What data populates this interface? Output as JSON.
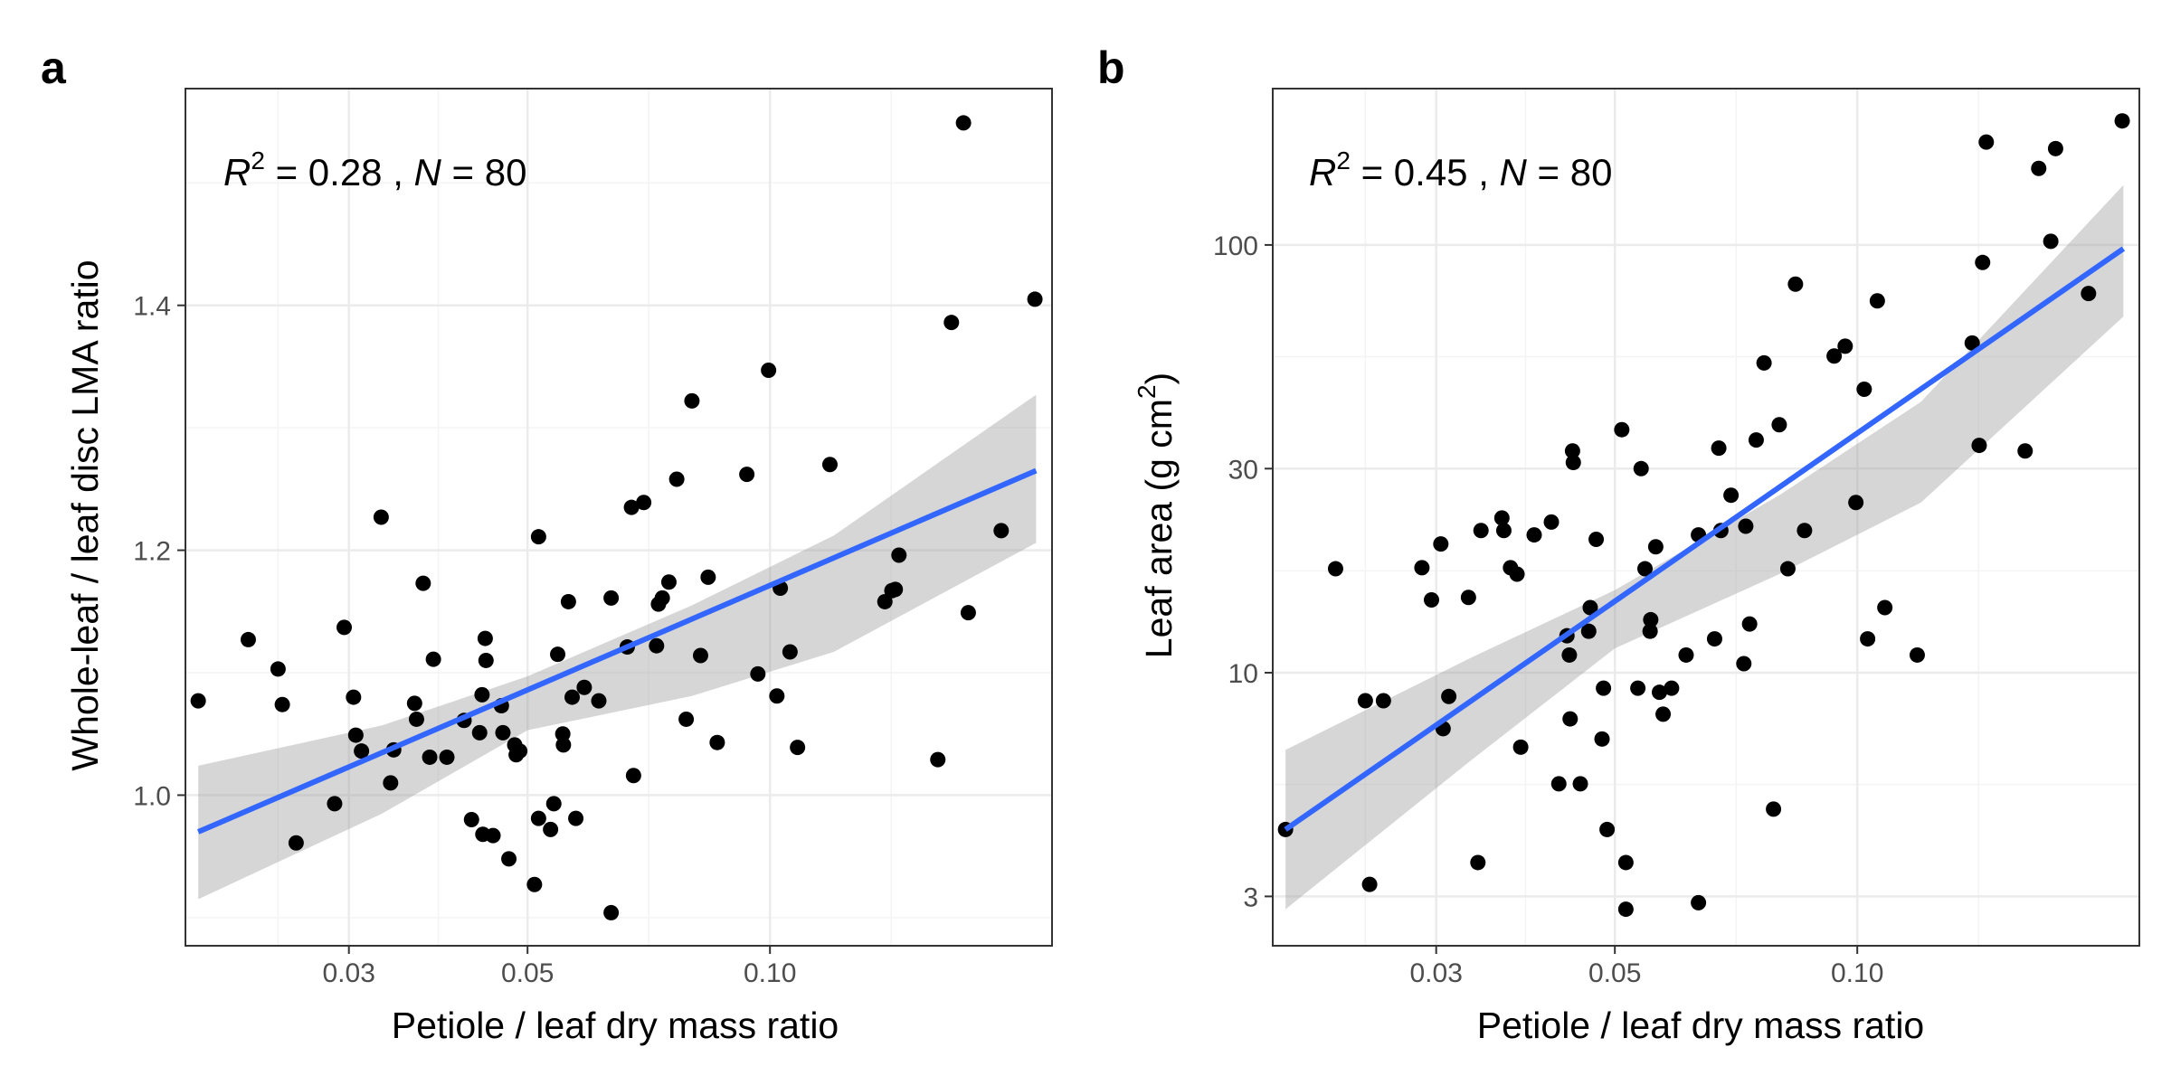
{
  "chart_data": [
    {
      "type": "scatter",
      "panel_label": "a",
      "annotation": {
        "r2_label": "R",
        "r2_sup": "2",
        "r2_value": " = 0.28 , ",
        "n_label": "N",
        "n_value": " = 80"
      },
      "xlabel": "Petiole / leaf dry mass ratio",
      "ylabel": "Whole-leaf / leaf disc LMA ratio",
      "x_scale": "log",
      "y_scale": "linear",
      "xlim": [
        0.0188,
        0.224
      ],
      "ylim": [
        0.877,
        1.577
      ],
      "x_ticks": [
        {
          "value": 0.03,
          "label": "0.03"
        },
        {
          "value": 0.05,
          "label": "0.05"
        },
        {
          "value": 0.1,
          "label": "0.10"
        }
      ],
      "y_ticks": [
        {
          "value": 1.0,
          "label": "1.0"
        },
        {
          "value": 1.2,
          "label": "1.2"
        },
        {
          "value": 1.4,
          "label": "1.4"
        }
      ],
      "y_minor": [
        0.9,
        1.1,
        1.3,
        1.5
      ],
      "grid": true,
      "fit_line": {
        "x": [
          0.0195,
          0.214
        ],
        "y": [
          0.97,
          1.265
        ]
      },
      "confidence_band": {
        "x": [
          0.0195,
          0.033,
          0.05,
          0.08,
          0.12,
          0.214
        ],
        "upper": [
          1.024,
          1.057,
          1.097,
          1.155,
          1.212,
          1.327
        ],
        "lower": [
          0.915,
          0.985,
          1.053,
          1.081,
          1.117,
          1.206
        ]
      },
      "points": [
        [
          0.0195,
          1.077
        ],
        [
          0.0225,
          1.127
        ],
        [
          0.0245,
          1.103
        ],
        [
          0.0248,
          1.074
        ],
        [
          0.0258,
          0.961
        ],
        [
          0.0288,
          0.993
        ],
        [
          0.0296,
          1.137
        ],
        [
          0.0304,
          1.08
        ],
        [
          0.0306,
          1.049
        ],
        [
          0.0311,
          1.036
        ],
        [
          0.0329,
          1.227
        ],
        [
          0.0338,
          1.01
        ],
        [
          0.0341,
          1.037
        ],
        [
          0.0362,
          1.075
        ],
        [
          0.0364,
          1.062
        ],
        [
          0.0371,
          1.173
        ],
        [
          0.0378,
          1.031
        ],
        [
          0.0382,
          1.111
        ],
        [
          0.0397,
          1.031
        ],
        [
          0.0417,
          1.061
        ],
        [
          0.0426,
          0.98
        ],
        [
          0.0436,
          1.051
        ],
        [
          0.0439,
          1.082
        ],
        [
          0.044,
          0.968
        ],
        [
          0.0443,
          1.128
        ],
        [
          0.0444,
          1.11
        ],
        [
          0.0453,
          0.967
        ],
        [
          0.0464,
          1.073
        ],
        [
          0.0466,
          1.051
        ],
        [
          0.0474,
          0.948
        ],
        [
          0.0482,
          1.041
        ],
        [
          0.0484,
          1.033
        ],
        [
          0.0489,
          1.036
        ],
        [
          0.051,
          0.927
        ],
        [
          0.0516,
          0.981
        ],
        [
          0.0516,
          1.211
        ],
        [
          0.0534,
          0.972
        ],
        [
          0.0539,
          0.993
        ],
        [
          0.0545,
          1.115
        ],
        [
          0.0553,
          1.05
        ],
        [
          0.0554,
          1.041
        ],
        [
          0.0562,
          1.158
        ],
        [
          0.0568,
          1.08
        ],
        [
          0.0574,
          0.981
        ],
        [
          0.0588,
          1.088
        ],
        [
          0.0613,
          1.077
        ],
        [
          0.0635,
          1.161
        ],
        [
          0.0635,
          0.904
        ],
        [
          0.0665,
          1.121
        ],
        [
          0.0673,
          1.235
        ],
        [
          0.0677,
          1.016
        ],
        [
          0.0697,
          1.239
        ],
        [
          0.0723,
          1.122
        ],
        [
          0.0727,
          1.156
        ],
        [
          0.0735,
          1.161
        ],
        [
          0.0749,
          1.174
        ],
        [
          0.0766,
          1.258
        ],
        [
          0.0787,
          1.062
        ],
        [
          0.08,
          1.322
        ],
        [
          0.082,
          1.114
        ],
        [
          0.0838,
          1.178
        ],
        [
          0.086,
          1.043
        ],
        [
          0.0936,
          1.262
        ],
        [
          0.0966,
          1.099
        ],
        [
          0.0996,
          1.347
        ],
        [
          0.102,
          1.081
        ],
        [
          0.103,
          1.169
        ],
        [
          0.1059,
          1.117
        ],
        [
          0.1082,
          1.039
        ],
        [
          0.1187,
          1.27
        ],
        [
          0.1389,
          1.158
        ],
        [
          0.1417,
          1.167
        ],
        [
          0.1431,
          1.168
        ],
        [
          0.1446,
          1.196
        ],
        [
          0.1616,
          1.029
        ],
        [
          0.168,
          1.386
        ],
        [
          0.1739,
          1.549
        ],
        [
          0.1763,
          1.149
        ],
        [
          0.1937,
          1.216
        ],
        [
          0.2133,
          1.405
        ]
      ]
    },
    {
      "type": "scatter",
      "panel_label": "b",
      "annotation": {
        "r2_label": "R",
        "r2_sup": "2",
        "r2_value": " = 0.45 , ",
        "n_label": "N",
        "n_value": " = 80"
      },
      "xlabel": "Petiole / leaf dry mass ratio",
      "ylabel_main": "Leaf area (g cm",
      "ylabel_sup": "2",
      "ylabel_close": ")",
      "x_scale": "log",
      "y_scale": "log",
      "xlim": [
        0.0188,
        0.224
      ],
      "ylim": [
        2.3,
        232
      ],
      "x_ticks": [
        {
          "value": 0.03,
          "label": "0.03"
        },
        {
          "value": 0.05,
          "label": "0.05"
        },
        {
          "value": 0.1,
          "label": "0.10"
        }
      ],
      "y_ticks": [
        {
          "value": 3,
          "label": "3"
        },
        {
          "value": 10,
          "label": "10"
        },
        {
          "value": 30,
          "label": "30"
        },
        {
          "value": 100,
          "label": "100"
        }
      ],
      "y_minor": [
        5.48,
        17.3,
        54.8
      ],
      "grid": true,
      "fit_line": {
        "x": [
          0.0195,
          0.214
        ],
        "y": [
          4.3,
          98
        ]
      },
      "confidence_band": {
        "x": [
          0.0195,
          0.033,
          0.05,
          0.08,
          0.12,
          0.214
        ],
        "upper": [
          6.6,
          10.8,
          15.6,
          26.0,
          43.0,
          138
        ],
        "lower": [
          2.8,
          6.2,
          11.4,
          17.0,
          25.0,
          68
        ]
      },
      "points": [
        [
          0.0195,
          4.3
        ],
        [
          0.0225,
          17.5
        ],
        [
          0.0245,
          8.6
        ],
        [
          0.0248,
          3.2
        ],
        [
          0.0258,
          8.6
        ],
        [
          0.0288,
          17.6
        ],
        [
          0.0296,
          14.8
        ],
        [
          0.0304,
          20.0
        ],
        [
          0.0306,
          7.4
        ],
        [
          0.0311,
          8.8
        ],
        [
          0.0329,
          15.0
        ],
        [
          0.0338,
          3.6
        ],
        [
          0.0341,
          21.5
        ],
        [
          0.0362,
          23.0
        ],
        [
          0.0364,
          21.5
        ],
        [
          0.0371,
          17.6
        ],
        [
          0.0378,
          17.0
        ],
        [
          0.0382,
          6.7
        ],
        [
          0.0397,
          21.0
        ],
        [
          0.0417,
          22.5
        ],
        [
          0.0426,
          5.5
        ],
        [
          0.0436,
          12.2
        ],
        [
          0.0439,
          11.0
        ],
        [
          0.044,
          7.8
        ],
        [
          0.0443,
          33.0
        ],
        [
          0.0444,
          31.0
        ],
        [
          0.0453,
          5.5
        ],
        [
          0.0464,
          12.5
        ],
        [
          0.0466,
          14.2
        ],
        [
          0.0474,
          20.5
        ],
        [
          0.0482,
          7.0
        ],
        [
          0.0484,
          9.2
        ],
        [
          0.0489,
          4.3
        ],
        [
          0.051,
          37.0
        ],
        [
          0.0516,
          3.6
        ],
        [
          0.0516,
          2.8
        ],
        [
          0.0534,
          9.2
        ],
        [
          0.0539,
          30.0
        ],
        [
          0.0545,
          17.5
        ],
        [
          0.0553,
          12.5
        ],
        [
          0.0554,
          13.3
        ],
        [
          0.0562,
          19.7
        ],
        [
          0.0568,
          9.0
        ],
        [
          0.0574,
          8.0
        ],
        [
          0.0588,
          9.2
        ],
        [
          0.0613,
          11.0
        ],
        [
          0.0635,
          21.0
        ],
        [
          0.0635,
          2.9
        ],
        [
          0.0665,
          12.0
        ],
        [
          0.0673,
          33.5
        ],
        [
          0.0677,
          21.5
        ],
        [
          0.0697,
          26.0
        ],
        [
          0.0723,
          10.5
        ],
        [
          0.0727,
          22.0
        ],
        [
          0.0735,
          13.0
        ],
        [
          0.0749,
          35.0
        ],
        [
          0.0766,
          53.0
        ],
        [
          0.0787,
          4.8
        ],
        [
          0.08,
          38.0
        ],
        [
          0.082,
          17.5
        ],
        [
          0.0838,
          81.0
        ],
        [
          0.086,
          21.5
        ],
        [
          0.0936,
          55.0
        ],
        [
          0.0966,
          58.0
        ],
        [
          0.0996,
          25.0
        ],
        [
          0.102,
          46.0
        ],
        [
          0.103,
          12.0
        ],
        [
          0.1059,
          74.0
        ],
        [
          0.1082,
          14.2
        ],
        [
          0.1187,
          11.0
        ],
        [
          0.1389,
          59.0
        ],
        [
          0.1417,
          34.0
        ],
        [
          0.1431,
          91.0
        ],
        [
          0.1446,
          174.0
        ],
        [
          0.1616,
          33.0
        ],
        [
          0.168,
          151.0
        ],
        [
          0.1739,
          102.0
        ],
        [
          0.1763,
          168.0
        ],
        [
          0.1937,
          77.0
        ],
        [
          0.2133,
          195.0
        ]
      ]
    }
  ],
  "colors": {
    "fit_line": "#3366ff",
    "band": "#999999",
    "point": "#000000",
    "grid_major": "#ebebeb",
    "grid_minor": "#f4f4f4",
    "panel_border": "#333333"
  }
}
